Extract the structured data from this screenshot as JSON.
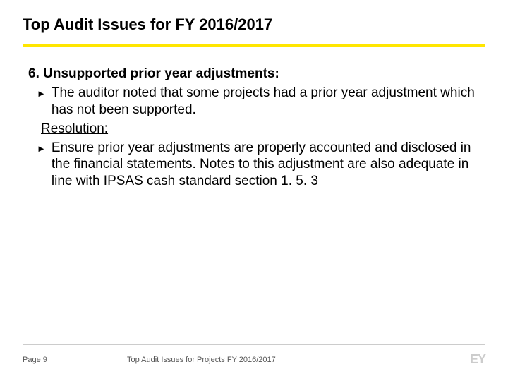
{
  "title": "Top Audit Issues  for FY 2016/2017",
  "divider_color": "#ffe600",
  "item": {
    "number": "6.",
    "heading": "Unsupported prior year adjustments:",
    "bullets": [
      "The auditor noted that some projects had a prior year adjustment which has not been supported."
    ],
    "resolution_label": "Resolution:",
    "resolution_bullets": [
      "Ensure prior year adjustments are properly accounted and disclosed in the financial statements. Notes to this adjustment are also adequate in line with IPSAS cash standard section 1. 5. 3"
    ]
  },
  "footer": {
    "page": "Page 9",
    "title": "Top Audit Issues  for Projects FY 2016/2017",
    "logo": "EY"
  },
  "colors": {
    "text": "#000000",
    "footer_text": "#555555",
    "footer_line": "#cccccc",
    "logo": "#cccccc",
    "background": "#ffffff"
  },
  "bullet_marker": "►"
}
